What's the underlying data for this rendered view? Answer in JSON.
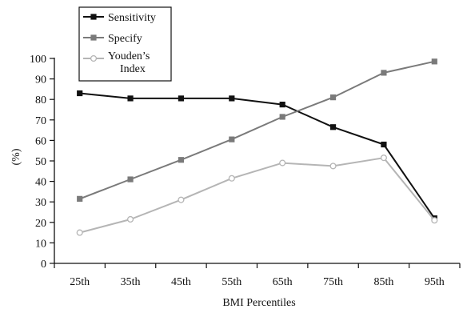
{
  "chart_data": {
    "type": "line",
    "title": "",
    "xlabel": "BMI Percentiles",
    "ylabel": "(%)",
    "ylim": [
      0,
      100
    ],
    "yticks": [
      0,
      10,
      20,
      30,
      40,
      50,
      60,
      70,
      80,
      90,
      100
    ],
    "categories": [
      "25th",
      "35th",
      "45th",
      "55th",
      "65th",
      "75th",
      "85th",
      "95th"
    ],
    "grid": false,
    "legend_position": "top-left",
    "series": [
      {
        "name": "Sensitivity",
        "values": [
          83,
          80.5,
          80.5,
          80.5,
          77.5,
          66.5,
          58,
          22
        ],
        "color": "#111111",
        "marker": "square"
      },
      {
        "name": "Specify",
        "values": [
          31.5,
          41,
          50.5,
          60.5,
          71.5,
          81,
          93,
          98.5
        ],
        "color": "#7a7a7a",
        "marker": "square"
      },
      {
        "name": "Youden’s Index",
        "values": [
          15,
          21.5,
          31,
          41.5,
          49,
          47.5,
          51.5,
          21
        ],
        "color": "#b5b5b5",
        "marker": "circle"
      }
    ]
  }
}
